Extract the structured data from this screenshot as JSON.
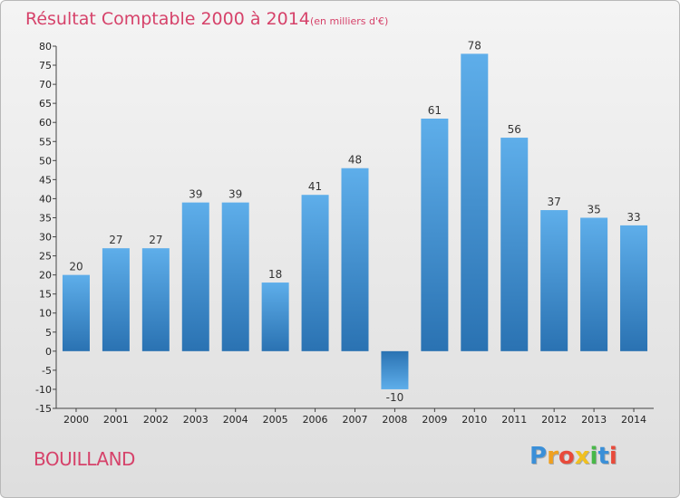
{
  "chart_data": {
    "type": "bar",
    "title": "Résultat Comptable 2000 à 2014",
    "subtitle": "(en milliers d'€)",
    "categories": [
      "2000",
      "2001",
      "2002",
      "2003",
      "2004",
      "2005",
      "2006",
      "2007",
      "2008",
      "2009",
      "2010",
      "2011",
      "2012",
      "2013",
      "2014"
    ],
    "values": [
      20,
      27,
      27,
      39,
      39,
      18,
      41,
      48,
      -10,
      61,
      78,
      56,
      37,
      35,
      33
    ],
    "value_labels": [
      "20",
      "27",
      "27",
      "39",
      "39",
      "18",
      "41",
      "48",
      "-10",
      "61",
      "78",
      "56",
      "37",
      "35",
      "33"
    ],
    "ylim": [
      -15,
      80
    ],
    "yticks": [
      -15,
      -10,
      -5,
      0,
      5,
      10,
      15,
      20,
      25,
      30,
      35,
      40,
      45,
      50,
      55,
      60,
      65,
      70,
      75,
      80
    ],
    "xlabel": "",
    "ylabel": "",
    "grid": false,
    "colors": {
      "bar_light": "#5aaae6",
      "bar_dark": "#2a73b3",
      "title": "#d6426a"
    }
  },
  "footer": {
    "commune": "BOUILLAND",
    "logo_letters": [
      {
        "char": "P",
        "color": "#3a8fd8"
      },
      {
        "char": "r",
        "color": "#f0a020"
      },
      {
        "char": "o",
        "color": "#e84a3a"
      },
      {
        "char": "x",
        "color": "#f0c020"
      },
      {
        "char": "i",
        "color": "#48b848"
      },
      {
        "char": "t",
        "color": "#3a8fd8"
      },
      {
        "char": "i",
        "color": "#e84a3a"
      }
    ]
  }
}
